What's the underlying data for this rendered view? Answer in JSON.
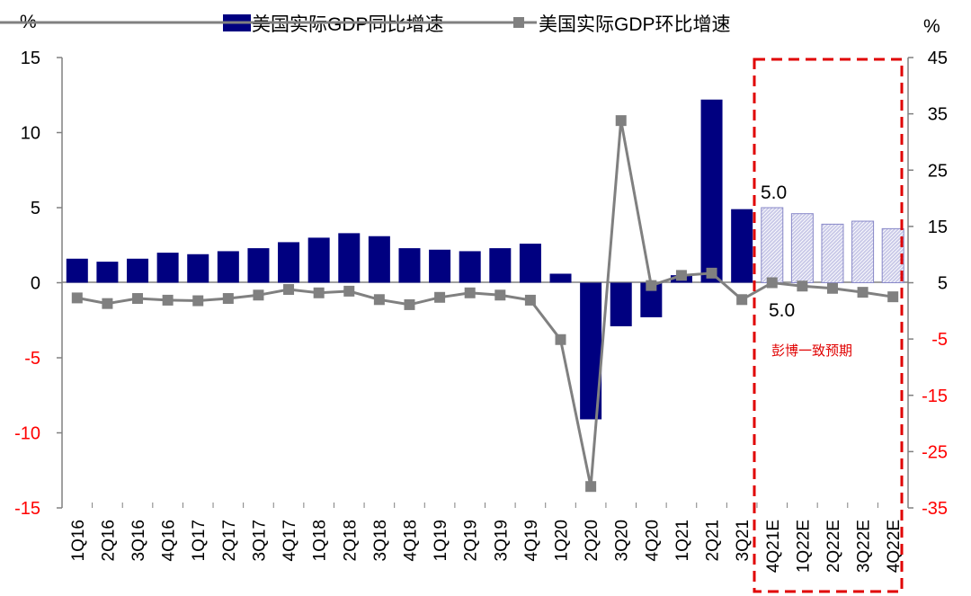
{
  "chart_data": {
    "type": "bar",
    "left_unit": "%",
    "right_unit": "%",
    "categories": [
      "1Q16",
      "2Q16",
      "3Q16",
      "4Q16",
      "1Q17",
      "2Q17",
      "3Q17",
      "4Q17",
      "1Q18",
      "2Q18",
      "3Q18",
      "4Q18",
      "1Q19",
      "2Q19",
      "3Q19",
      "4Q19",
      "1Q20",
      "2Q20",
      "3Q20",
      "4Q20",
      "1Q21",
      "2Q21",
      "3Q21",
      "4Q21E",
      "1Q22E",
      "2Q22E",
      "3Q22E",
      "4Q22E"
    ],
    "forecast_start_index": 23,
    "series": [
      {
        "name": "美国实际GDP同比增速",
        "type": "bar",
        "axis": "left",
        "color": "#000080",
        "forecast_color": "#c9c9e8",
        "values": [
          1.6,
          1.4,
          1.6,
          2.0,
          1.9,
          2.1,
          2.3,
          2.7,
          3.0,
          3.3,
          3.1,
          2.3,
          2.2,
          2.1,
          2.3,
          2.6,
          0.6,
          -9.1,
          -2.9,
          -2.3,
          0.5,
          12.2,
          4.9,
          5.0,
          4.6,
          3.9,
          4.1,
          3.6
        ]
      },
      {
        "name": "美国实际GDP环比增速",
        "type": "line",
        "axis": "right",
        "color": "#808080",
        "values": [
          2.3,
          1.3,
          2.2,
          1.9,
          1.8,
          2.2,
          2.8,
          3.8,
          3.2,
          3.5,
          2.0,
          1.1,
          2.4,
          3.2,
          2.8,
          1.9,
          -5.1,
          -31.2,
          33.8,
          4.5,
          6.3,
          6.7,
          2.0,
          5.0,
          4.4,
          4.0,
          3.3,
          2.5
        ]
      }
    ],
    "left_axis": {
      "ylim": [
        -15,
        15
      ],
      "ticks": [
        "15",
        "10",
        "5",
        "0",
        "-5",
        "-10",
        "-15"
      ]
    },
    "right_axis": {
      "ylim": [
        -35,
        45
      ],
      "ticks": [
        "45",
        "35",
        "25",
        "15",
        "5",
        "-5",
        "-15",
        "-25",
        "-35"
      ]
    },
    "annotations": {
      "bar_label": "5.0",
      "line_label": "5.0",
      "forecast_box_label": "彭博一致预期"
    },
    "colors": {
      "negative_tick": "#ff0000",
      "forecast_box": "#e00000",
      "axis": "#808080"
    },
    "legend_position": "top-center",
    "grid": false
  }
}
